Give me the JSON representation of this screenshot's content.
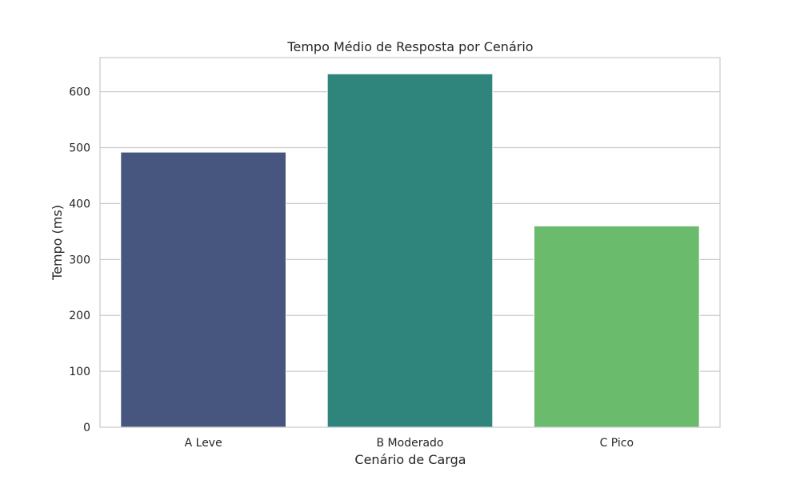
{
  "chart_data": {
    "type": "bar",
    "title": "Tempo Médio de Resposta por Cenário",
    "xlabel": "Cenário de Carga",
    "ylabel": "Tempo (ms)",
    "categories": [
      "A Leve",
      "B Moderado",
      "C Pico"
    ],
    "values": [
      492,
      632,
      360
    ],
    "colors": [
      "#46567f",
      "#2f857c",
      "#6bbb6d"
    ],
    "ylim": [
      0,
      661
    ],
    "yticks": [
      0,
      100,
      200,
      300,
      400,
      500,
      600
    ],
    "grid": true,
    "legend": "none"
  }
}
